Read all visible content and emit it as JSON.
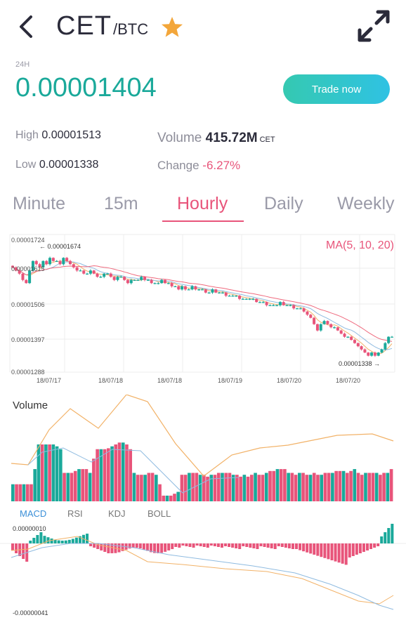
{
  "header": {
    "base": "CET",
    "quote": "/BTC",
    "icons": {
      "back": "back-arrow-icon",
      "favorite": "star-icon",
      "expand": "expand-icon"
    },
    "star_color": "#f3a63a"
  },
  "summary": {
    "period_label": "24H",
    "last_price": "0.00001404",
    "trade_button": "Trade now",
    "high_label": "High",
    "high_value": "0.00001513",
    "low_label": "Low",
    "low_value": "0.00001338",
    "volume_label": "Volume",
    "volume_value": "415.72M",
    "volume_unit": "CET",
    "change_label": "Change",
    "change_value": "-6.27%"
  },
  "tabs": [
    {
      "label": "Minute",
      "active": false
    },
    {
      "label": "15m",
      "active": false
    },
    {
      "label": "Hourly",
      "active": true
    },
    {
      "label": "Daily",
      "active": false
    },
    {
      "label": "Weekly",
      "active": false
    }
  ],
  "colors": {
    "up": "#1aa99a",
    "down": "#e8547a",
    "accent": "#e8547a",
    "ma_orange": "#f2b268",
    "ma_pink": "#ef6a7e",
    "ma_blue": "#8fbbe0"
  },
  "price_chart": {
    "ma_label": "MA(5, 10, 20)",
    "y_ticks": [
      "0.00001724",
      "0.00001615",
      "0.00001506",
      "0.00001397",
      "0.00001288"
    ],
    "x_ticks": [
      "18/07/17",
      "18/07/18",
      "18/07/18",
      "18/07/19",
      "18/07/20",
      "18/07/20"
    ],
    "max_label": "← 0.00001674",
    "min_label": "0.00001338 →"
  },
  "volume_chart": {
    "title": "Volume"
  },
  "indicator_tabs": [
    {
      "label": "MACD",
      "active": true
    },
    {
      "label": "RSI",
      "active": false
    },
    {
      "label": "KDJ",
      "active": false
    },
    {
      "label": "BOLL",
      "active": false
    }
  ],
  "macd_chart": {
    "top_label": "0.00000010",
    "bottom_label": "-0.00000041"
  },
  "chart_data": [
    {
      "type": "candlestick",
      "y_axis_range": [
        1.288e-05,
        1.724e-05
      ],
      "max_price": 1.674e-05,
      "min_price": 1.338e-05,
      "closes": [
        1.62e-05,
        1.61e-05,
        1.6e-05,
        1.58e-05,
        1.57e-05,
        1.61e-05,
        1.64e-05,
        1.63e-05,
        1.62e-05,
        1.64e-05,
        1.63e-05,
        1.65e-05,
        1.64e-05,
        1.64e-05,
        1.63e-05,
        1.65e-05,
        1.64e-05,
        1.63e-05,
        1.62e-05,
        1.61e-05,
        1.61e-05,
        1.6e-05,
        1.6e-05,
        1.61e-05,
        1.6e-05,
        1.59e-05,
        1.59e-05,
        1.6e-05,
        1.6e-05,
        1.59e-05,
        1.58e-05,
        1.59e-05,
        1.59e-05,
        1.58e-05,
        1.57e-05,
        1.58e-05,
        1.58e-05,
        1.58e-05,
        1.59e-05,
        1.58e-05,
        1.58e-05,
        1.57e-05,
        1.57e-05,
        1.57e-05,
        1.58e-05,
        1.57e-05,
        1.57e-05,
        1.56e-05,
        1.56e-05,
        1.55e-05,
        1.56e-05,
        1.55e-05,
        1.55e-05,
        1.56e-05,
        1.55e-05,
        1.55e-05,
        1.55e-05,
        1.54e-05,
        1.54e-05,
        1.55e-05,
        1.54e-05,
        1.54e-05,
        1.54e-05,
        1.53e-05,
        1.53e-05,
        1.53e-05,
        1.53e-05,
        1.52e-05,
        1.52e-05,
        1.52e-05,
        1.52e-05,
        1.52e-05,
        1.51e-05,
        1.51e-05,
        1.51e-05,
        1.5e-05,
        1.5e-05,
        1.5e-05,
        1.5e-05,
        1.51e-05,
        1.5e-05,
        1.5e-05,
        1.5e-05,
        1.49e-05,
        1.49e-05,
        1.49e-05,
        1.48e-05,
        1.47e-05,
        1.46e-05,
        1.44e-05,
        1.42e-05,
        1.44e-05,
        1.45e-05,
        1.44e-05,
        1.43e-05,
        1.43e-05,
        1.42e-05,
        1.41e-05,
        1.4e-05,
        1.4e-05,
        1.39e-05,
        1.38e-05,
        1.37e-05,
        1.36e-05,
        1.35e-05,
        1.34e-05,
        1.35e-05,
        1.34e-05,
        1.35e-05,
        1.36e-05,
        1.38e-05,
        1.4e-05,
        1.4e-05
      ]
    },
    {
      "type": "bar",
      "title": "Volume",
      "values": [
        18,
        18,
        18,
        18,
        18,
        18,
        34,
        60,
        60,
        60,
        60,
        60,
        58,
        55,
        30,
        30,
        30,
        32,
        34,
        34,
        34,
        30,
        45,
        55,
        55,
        55,
        56,
        58,
        60,
        62,
        62,
        60,
        55,
        30,
        28,
        28,
        28,
        30,
        30,
        28,
        18,
        6,
        6,
        6,
        8,
        10,
        28,
        28,
        30,
        30,
        30,
        28,
        28,
        26,
        28,
        28,
        30,
        30,
        30,
        30,
        28,
        28,
        26,
        28,
        26,
        28,
        30,
        28,
        28,
        30,
        32,
        32,
        34,
        34,
        34,
        30,
        30,
        28,
        30,
        30,
        28,
        28,
        30,
        28,
        28,
        30,
        30,
        30,
        32,
        32,
        32,
        30,
        32,
        34,
        30,
        28,
        30,
        30,
        30,
        30,
        28,
        30,
        30,
        34
      ]
    },
    {
      "type": "bar",
      "title": "MACD",
      "y_labels": [
        "0.00000010",
        "-0.00000041"
      ]
    }
  ]
}
